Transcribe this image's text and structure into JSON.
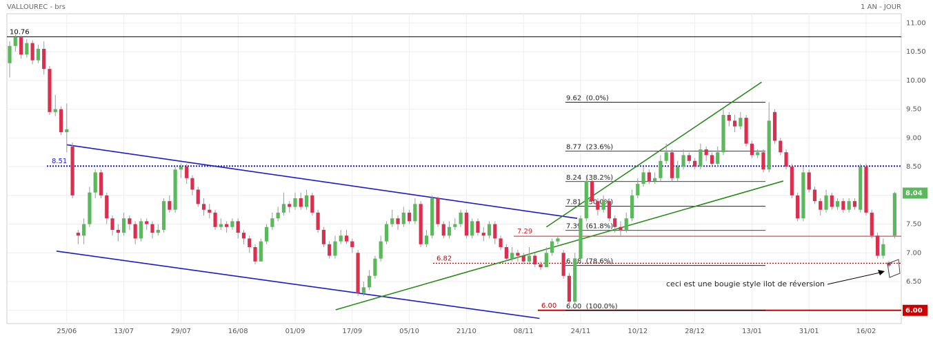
{
  "chart_data": {
    "type": "candlestick",
    "title": "VALLOUREC - brs",
    "subtitle": "1 AN - JOUR",
    "up_color": "#5cb85c",
    "down_color": "#d9304f",
    "grid": true,
    "ylim": [
      5.77,
      11.16
    ],
    "yticks": [
      {
        "value": 6,
        "label": "6.00"
      },
      {
        "value": 6.5,
        "label": "6.50"
      },
      {
        "value": 7,
        "label": "7.00"
      },
      {
        "value": 7.5,
        "label": "7.50"
      },
      {
        "value": 8,
        "label": "8.00"
      },
      {
        "value": 8.5,
        "label": "8.50"
      },
      {
        "value": 9,
        "label": "9.00"
      },
      {
        "value": 9.5,
        "label": "9.50"
      },
      {
        "value": 10,
        "label": "10.00"
      },
      {
        "value": 10.5,
        "label": "10.50"
      },
      {
        "value": 11,
        "label": "11.00"
      }
    ],
    "categories": [
      null,
      null,
      null,
      null,
      null,
      null,
      null,
      null,
      null,
      null,
      "25/06",
      null,
      null,
      null,
      null,
      null,
      null,
      null,
      null,
      null,
      "13/07",
      null,
      null,
      null,
      null,
      null,
      null,
      null,
      null,
      null,
      "29/07",
      null,
      null,
      null,
      null,
      null,
      null,
      null,
      null,
      null,
      "16/08",
      null,
      null,
      null,
      null,
      null,
      null,
      null,
      null,
      null,
      "01/09",
      null,
      null,
      null,
      null,
      null,
      null,
      null,
      null,
      null,
      "17/09",
      null,
      null,
      null,
      null,
      null,
      null,
      null,
      null,
      null,
      "05/10",
      null,
      null,
      null,
      null,
      null,
      null,
      null,
      null,
      null,
      "21/10",
      null,
      null,
      null,
      null,
      null,
      null,
      null,
      null,
      null,
      "08/11",
      null,
      null,
      null,
      null,
      null,
      null,
      null,
      null,
      null,
      "24/11",
      null,
      null,
      null,
      null,
      null,
      null,
      null,
      null,
      null,
      "10/12",
      null,
      null,
      null,
      null,
      null,
      null,
      null,
      null,
      null,
      "28/12",
      null,
      null,
      null,
      null,
      null,
      null,
      null,
      null,
      null,
      "13/01",
      null,
      null,
      null,
      null,
      null,
      null,
      null,
      null,
      null,
      "31/01",
      null,
      null,
      null,
      null,
      null,
      null,
      null,
      null,
      null,
      "16/02",
      null,
      null,
      null,
      null,
      null
    ],
    "open": [
      10.3,
      10.6,
      10.75,
      10.45,
      10.65,
      10.35,
      10.55,
      10.2,
      9.45,
      9.5,
      9.1,
      8.85,
      7.35,
      7.3,
      7.5,
      8.05,
      8.4,
      8.0,
      7.6,
      7.4,
      7.35,
      7.6,
      7.5,
      7.25,
      7.55,
      7.5,
      7.35,
      7.4,
      7.9,
      7.75,
      8.45,
      8.5,
      8.3,
      8.1,
      7.85,
      7.75,
      7.7,
      7.45,
      7.5,
      7.45,
      7.55,
      7.35,
      7.25,
      7.1,
      6.85,
      7.2,
      7.45,
      7.6,
      7.7,
      7.85,
      7.8,
      7.95,
      7.8,
      8.0,
      7.7,
      7.4,
      7.15,
      6.95,
      7.2,
      7.3,
      7.2,
      7.0,
      6.3,
      6.4,
      6.6,
      6.9,
      7.2,
      7.5,
      7.6,
      7.5,
      7.7,
      7.55,
      7.85,
      7.15,
      7.3,
      7.95,
      7.5,
      7.3,
      7.45,
      7.5,
      7.7,
      7.3,
      7.55,
      7.35,
      7.3,
      7.5,
      7.25,
      7.1,
      6.9,
      7.0,
      6.95,
      6.85,
      6.95,
      6.8,
      6.75,
      7.0,
      7.2,
      7.0,
      6.6,
      6.15,
      6.9,
      7.6,
      8.25,
      7.9,
      7.75,
      7.9,
      7.6,
      7.45,
      7.4,
      7.6,
      8.0,
      8.2,
      8.4,
      8.25,
      8.3,
      8.6,
      8.75,
      8.3,
      8.5,
      8.7,
      8.6,
      8.5,
      8.8,
      8.7,
      8.55,
      8.75,
      9.4,
      9.3,
      9.2,
      9.35,
      8.9,
      8.7,
      8.75,
      8.45,
      9.45,
      8.95,
      8.75,
      8.5,
      8.0,
      7.6,
      8.4,
      8.1,
      7.9,
      7.75,
      8.0,
      7.8,
      7.9,
      7.75,
      7.9,
      7.75,
      8.5,
      7.7,
      7.3,
      6.95,
      6.83,
      7.3
    ],
    "high": [
      10.68,
      10.8,
      10.78,
      10.72,
      10.7,
      10.62,
      10.68,
      10.25,
      9.75,
      9.55,
      9.6,
      8.92,
      7.4,
      7.6,
      8.15,
      8.45,
      8.45,
      8.05,
      7.65,
      7.5,
      7.7,
      7.65,
      7.55,
      7.6,
      7.6,
      7.55,
      7.5,
      7.95,
      8.0,
      8.5,
      8.55,
      8.55,
      8.35,
      8.15,
      7.95,
      7.85,
      7.75,
      7.6,
      7.55,
      7.6,
      7.6,
      7.4,
      7.3,
      7.15,
      7.25,
      7.5,
      7.7,
      7.8,
      8.05,
      7.9,
      8.05,
      8.05,
      8.1,
      8.05,
      7.75,
      7.45,
      7.2,
      7.3,
      7.4,
      7.4,
      7.25,
      7.05,
      6.5,
      6.7,
      6.95,
      7.3,
      7.55,
      7.75,
      7.65,
      7.8,
      7.75,
      7.95,
      7.9,
      7.4,
      8.0,
      7.98,
      7.55,
      7.55,
      7.6,
      7.75,
      7.75,
      7.6,
      7.6,
      7.45,
      7.55,
      7.55,
      7.3,
      7.15,
      7.1,
      7.05,
      7.0,
      7.1,
      7.0,
      6.85,
      7.1,
      7.25,
      7.3,
      7.05,
      6.65,
      7.0,
      7.65,
      8.35,
      8.3,
      7.95,
      8.0,
      7.95,
      7.65,
      7.55,
      7.7,
      8.1,
      8.3,
      8.5,
      8.45,
      8.4,
      8.7,
      8.9,
      8.8,
      8.6,
      8.8,
      8.75,
      8.65,
      8.9,
      8.85,
      8.75,
      8.85,
      9.5,
      9.45,
      9.4,
      9.45,
      9.4,
      8.95,
      8.8,
      8.8,
      9.62,
      9.5,
      9.0,
      8.8,
      8.55,
      8.05,
      8.5,
      8.45,
      8.15,
      7.95,
      8.1,
      8.05,
      7.95,
      7.95,
      7.95,
      7.95,
      8.55,
      8.55,
      7.75,
      7.35,
      7.25,
      6.86,
      8.06
    ],
    "low": [
      10.05,
      10.5,
      10.38,
      10.4,
      10.28,
      10.3,
      10.1,
      9.4,
      9.38,
      9.05,
      8.75,
      7.95,
      7.15,
      7.15,
      7.45,
      7.95,
      7.95,
      7.5,
      7.3,
      7.2,
      7.3,
      7.4,
      7.15,
      7.2,
      7.4,
      7.25,
      7.3,
      7.35,
      7.7,
      7.7,
      8.3,
      8.2,
      8.0,
      7.8,
      7.65,
      7.6,
      7.4,
      7.4,
      7.35,
      7.4,
      7.25,
      7.15,
      7.0,
      6.8,
      6.85,
      7.15,
      7.4,
      7.55,
      7.65,
      7.7,
      7.75,
      7.75,
      7.75,
      7.65,
      7.35,
      7.1,
      6.9,
      6.9,
      7.15,
      7.15,
      7.0,
      6.25,
      6.25,
      6.35,
      6.55,
      6.85,
      7.15,
      7.45,
      7.4,
      7.45,
      7.5,
      7.5,
      7.1,
      7.1,
      7.25,
      7.45,
      7.25,
      7.25,
      7.4,
      7.45,
      7.25,
      7.25,
      7.3,
      7.2,
      7.25,
      7.15,
      7.05,
      6.85,
      6.85,
      6.85,
      6.8,
      6.8,
      6.75,
      6.7,
      6.75,
      6.95,
      7.15,
      6.55,
      6.05,
      6.1,
      6.85,
      7.55,
      7.85,
      7.65,
      7.7,
      7.55,
      7.35,
      7.3,
      7.35,
      7.55,
      7.95,
      8.15,
      8.2,
      8.2,
      8.25,
      8.55,
      8.25,
      8.25,
      8.45,
      8.55,
      8.45,
      8.45,
      8.6,
      8.5,
      8.5,
      8.7,
      9.2,
      9.1,
      9.15,
      8.85,
      8.65,
      8.65,
      8.4,
      8.4,
      8.9,
      8.7,
      8.45,
      7.95,
      7.55,
      7.55,
      8.05,
      7.85,
      7.65,
      7.7,
      7.75,
      7.75,
      7.7,
      7.7,
      7.75,
      7.7,
      7.65,
      7.25,
      6.9,
      6.9,
      6.75,
      7.25
    ],
    "close": [
      10.6,
      10.75,
      10.45,
      10.65,
      10.35,
      10.55,
      10.2,
      9.45,
      9.5,
      9.1,
      9.15,
      8.0,
      7.3,
      7.5,
      8.05,
      8.4,
      8.0,
      7.6,
      7.4,
      7.35,
      7.6,
      7.5,
      7.25,
      7.55,
      7.5,
      7.35,
      7.4,
      7.9,
      7.75,
      8.45,
      8.5,
      8.3,
      8.1,
      7.85,
      7.75,
      7.7,
      7.45,
      7.5,
      7.45,
      7.55,
      7.35,
      7.25,
      7.1,
      6.85,
      7.2,
      7.45,
      7.6,
      7.7,
      7.85,
      7.8,
      7.95,
      7.8,
      8.0,
      7.7,
      7.4,
      7.15,
      6.95,
      7.2,
      7.3,
      7.2,
      7.1,
      6.3,
      6.4,
      6.6,
      6.9,
      7.2,
      7.5,
      7.6,
      7.5,
      7.7,
      7.55,
      7.85,
      7.15,
      7.3,
      7.95,
      7.5,
      7.3,
      7.45,
      7.5,
      7.7,
      7.3,
      7.55,
      7.35,
      7.3,
      7.5,
      7.25,
      7.1,
      6.9,
      7.0,
      6.95,
      6.85,
      6.95,
      6.8,
      6.75,
      7.0,
      7.2,
      7.25,
      6.6,
      6.15,
      6.9,
      7.6,
      8.25,
      7.9,
      7.75,
      7.9,
      7.6,
      7.45,
      7.4,
      7.6,
      8.0,
      8.2,
      8.4,
      8.25,
      8.3,
      8.6,
      8.75,
      8.3,
      8.5,
      8.7,
      8.6,
      8.5,
      8.8,
      8.7,
      8.55,
      8.75,
      9.4,
      9.3,
      9.2,
      9.35,
      8.9,
      8.7,
      8.75,
      8.45,
      9.3,
      8.95,
      8.75,
      8.5,
      8.0,
      7.6,
      8.4,
      8.1,
      7.9,
      7.75,
      8.0,
      7.8,
      7.9,
      7.75,
      7.9,
      7.8,
      8.5,
      7.7,
      7.3,
      6.95,
      7.15,
      6.78,
      8.04
    ],
    "levels": [
      {
        "value": 10.76,
        "color": "#000000",
        "style": "solid"
      },
      {
        "value": 8.51,
        "color": "#1a1acc",
        "style": "dotted"
      },
      {
        "value": 7.29,
        "color": "#cc2222",
        "style": "thin"
      },
      {
        "value": 6.82,
        "color": "#aa1111",
        "style": "dotted"
      },
      {
        "value": 6,
        "label": "6.00",
        "color": "#cc0000",
        "style": "thick"
      }
    ],
    "fibonacci": [
      {
        "value": 9.62,
        "label": "9.62  (0.0%)"
      },
      {
        "value": 8.77,
        "label": "8.77  (23.6%)"
      },
      {
        "value": 8.24,
        "label": "8.24  (38.2%)"
      },
      {
        "value": 7.81,
        "label": "7.81  (50.0%)"
      },
      {
        "value": 7.39,
        "label": "7.39  (61.8%)"
      },
      {
        "value": 6.78,
        "label": "6.78  (78.6%)"
      },
      {
        "value": 6,
        "label": "6.00  (100.0%)"
      }
    ],
    "trendlines": [
      {
        "color": "#1a1acc",
        "points": [
          [
            10,
            8.88
          ],
          [
            99.4,
            7.6
          ]
        ]
      },
      {
        "color": "#1a1acc",
        "points": [
          [
            8.2,
            7.03
          ],
          [
            92.8,
            5.86
          ]
        ]
      },
      {
        "color": "#2a8a1a",
        "points": [
          [
            57.1,
            6.01
          ],
          [
            135.5,
            8.25
          ]
        ]
      },
      {
        "color": "#2a8a1a",
        "points": [
          [
            94,
            7.45
          ],
          [
            131.7,
            9.97
          ]
        ]
      }
    ],
    "annotation": "ceci est une bougie style ilot de réversion"
  }
}
